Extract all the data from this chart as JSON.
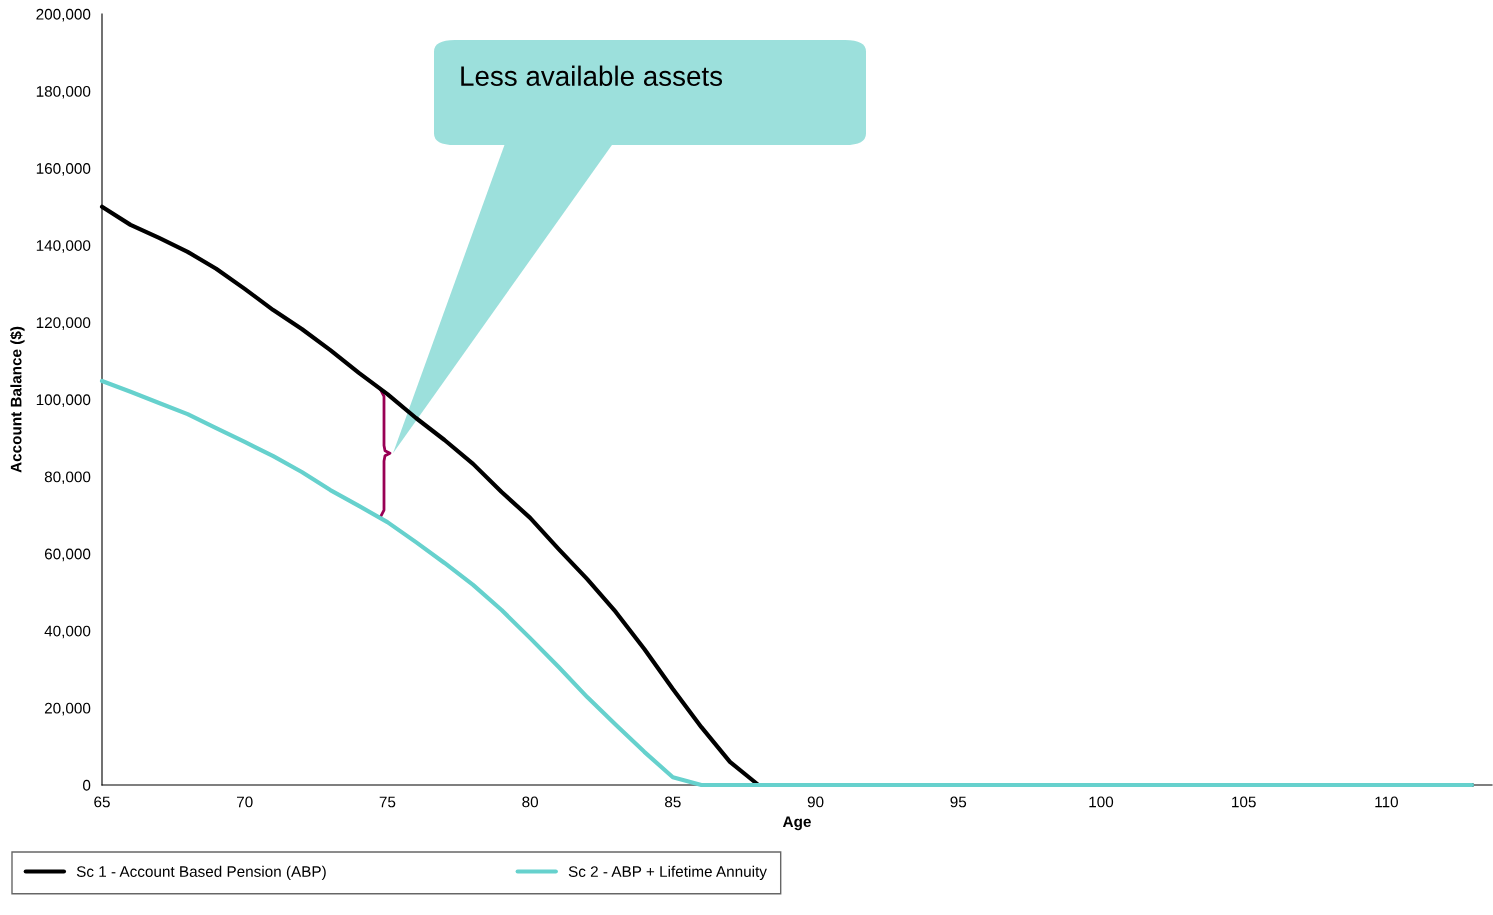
{
  "chart_data": {
    "type": "line",
    "xlabel": "Age",
    "ylabel": "Account Balance ($)",
    "x": [
      65,
      66,
      67,
      68,
      69,
      70,
      71,
      72,
      73,
      74,
      75,
      76,
      77,
      78,
      79,
      80,
      81,
      82,
      83,
      84,
      85,
      86,
      87,
      88,
      89,
      90,
      91,
      92,
      93,
      94,
      95,
      96,
      97,
      98,
      99,
      100,
      101,
      102,
      103,
      104,
      105,
      106,
      107,
      108,
      109,
      110,
      111,
      112,
      113
    ],
    "series": [
      {
        "name": "Sc 1 - Account Based Pension (ABP)",
        "color": "#000000",
        "values": [
          150000,
          145300,
          141900,
          138300,
          133900,
          128700,
          123200,
          118300,
          112800,
          106900,
          101400,
          95200,
          89500,
          83300,
          76000,
          69300,
          61200,
          53400,
          44900,
          35300,
          24900,
          15000,
          6000,
          0,
          0,
          0,
          0,
          0,
          0,
          0,
          0,
          0,
          0,
          0,
          0,
          0,
          0,
          0,
          0,
          0,
          0,
          0,
          0,
          0,
          0,
          0,
          0,
          0,
          0
        ]
      },
      {
        "name": "Sc 2 - ABP + Lifetime Annuity",
        "color": "#66d1cd",
        "values": [
          104800,
          102000,
          99100,
          96200,
          92600,
          89000,
          85300,
          81200,
          76500,
          72400,
          68200,
          63000,
          57600,
          51900,
          45400,
          38100,
          30600,
          22800,
          15600,
          8600,
          2000,
          0,
          0,
          0,
          0,
          0,
          0,
          0,
          0,
          0,
          0,
          0,
          0,
          0,
          0,
          0,
          0,
          0,
          0,
          0,
          0,
          0,
          0,
          0,
          0,
          0,
          0,
          0,
          0
        ]
      }
    ],
    "xlim": [
      65,
      113.7
    ],
    "xticks": [
      65,
      70,
      75,
      80,
      85,
      90,
      95,
      100,
      105,
      110
    ],
    "ylim": [
      0,
      200000
    ],
    "yticks": [
      {
        "value": 0,
        "label": "0"
      },
      {
        "value": 20000,
        "label": "20,000"
      },
      {
        "value": 40000,
        "label": "40,000"
      },
      {
        "value": 60000,
        "label": "60,000"
      },
      {
        "value": 80000,
        "label": "80,000"
      },
      {
        "value": 100000,
        "label": "100,000"
      },
      {
        "value": 120000,
        "label": "120,000"
      },
      {
        "value": 140000,
        "label": "140,000"
      },
      {
        "value": 160000,
        "label": "160,000"
      },
      {
        "value": 180000,
        "label": "180,000"
      },
      {
        "value": 200000,
        "label": "200,000"
      }
    ],
    "annotations": [
      "Less available assets"
    ],
    "grid": false,
    "legend": "bottom",
    "marker": "none",
    "line_style": "solid"
  }
}
